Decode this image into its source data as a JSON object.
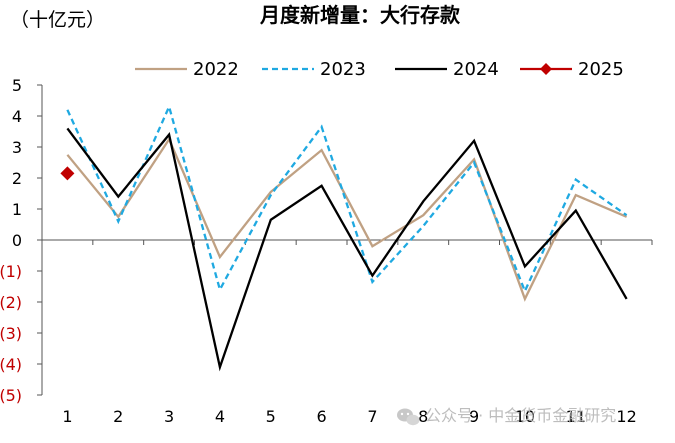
{
  "chart_data": {
    "type": "line",
    "title": "月度新增量：大行存款",
    "unit_label": "（十亿元）",
    "categories": [
      "1",
      "2",
      "3",
      "4",
      "5",
      "6",
      "7",
      "8",
      "9",
      "10",
      "11",
      "12"
    ],
    "ylim": [
      -5,
      5
    ],
    "yticks": [
      {
        "value": 5,
        "label": "5"
      },
      {
        "value": 4,
        "label": "4"
      },
      {
        "value": 3,
        "label": "3"
      },
      {
        "value": 2,
        "label": "2"
      },
      {
        "value": 1,
        "label": "1"
      },
      {
        "value": 0,
        "label": "0"
      },
      {
        "value": -1,
        "label": "(1)"
      },
      {
        "value": -2,
        "label": "(2)"
      },
      {
        "value": -3,
        "label": "(3)"
      },
      {
        "value": -4,
        "label": "(4)"
      },
      {
        "value": -5,
        "label": "(5)"
      }
    ],
    "grid": false,
    "legend_position": "top",
    "series": [
      {
        "name": "2022",
        "color": "#c0a183",
        "style": "solid",
        "values": [
          2.75,
          0.75,
          3.25,
          -0.55,
          1.55,
          2.9,
          -0.2,
          0.8,
          2.6,
          -1.9,
          1.45,
          0.75
        ]
      },
      {
        "name": "2023",
        "color": "#1fa9e1",
        "style": "dashed",
        "values": [
          4.2,
          0.6,
          4.3,
          -1.6,
          1.45,
          3.65,
          -1.35,
          0.45,
          2.5,
          -1.65,
          1.95,
          0.8
        ]
      },
      {
        "name": "2024",
        "color": "#000000",
        "style": "solid",
        "values": [
          3.6,
          1.4,
          3.4,
          -4.1,
          0.65,
          1.75,
          -1.15,
          1.25,
          3.2,
          -0.85,
          0.95,
          -1.9
        ]
      },
      {
        "name": "2025",
        "color": "#c00000",
        "style": "marker",
        "values": [
          2.15,
          null,
          null,
          null,
          null,
          null,
          null,
          null,
          null,
          null,
          null,
          null
        ]
      }
    ],
    "colors": {
      "axis": "#555555",
      "positive_tick": "#000000",
      "negative_tick": "#c00000"
    }
  },
  "watermark": "公众号 · 中金货币金融研究"
}
